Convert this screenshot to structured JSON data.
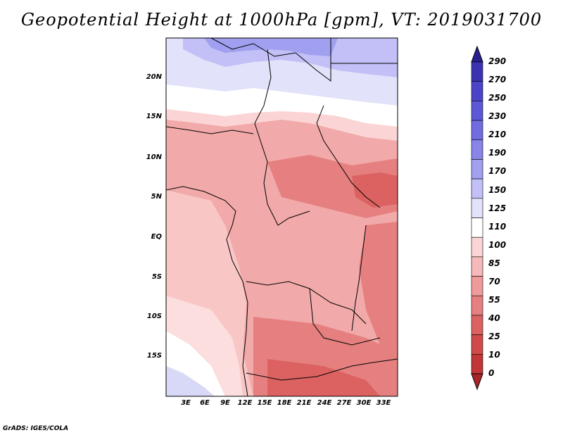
{
  "title": "Geopotential Height at 1000hPa [gpm], VT: 2019031700",
  "credit": "GrADS: IGES/COLA",
  "map": {
    "lat_ticks": [
      "20N",
      "15N",
      "10N",
      "5N",
      "EQ",
      "5S",
      "10S",
      "15S"
    ],
    "lon_ticks": [
      "3E",
      "6E",
      "9E",
      "12E",
      "15E",
      "18E",
      "21E",
      "24E",
      "27E",
      "30E",
      "33E"
    ]
  },
  "colorbar": {
    "levels": [
      "290",
      "270",
      "250",
      "230",
      "210",
      "190",
      "170",
      "150",
      "125",
      "110",
      "100",
      "85",
      "70",
      "55",
      "40",
      "25",
      "10",
      "0"
    ],
    "colors": [
      "#2a1f8f",
      "#3c33b0",
      "#4a44c8",
      "#5c57d6",
      "#716de0",
      "#8884e8",
      "#a19ff0",
      "#c2c0f6",
      "#e2e2fa",
      "#ffffff",
      "#fbd5d5",
      "#f6b8b8",
      "#ef9b9b",
      "#e68080",
      "#dc6262",
      "#d04a4a",
      "#c13636",
      "#a82626"
    ]
  }
}
